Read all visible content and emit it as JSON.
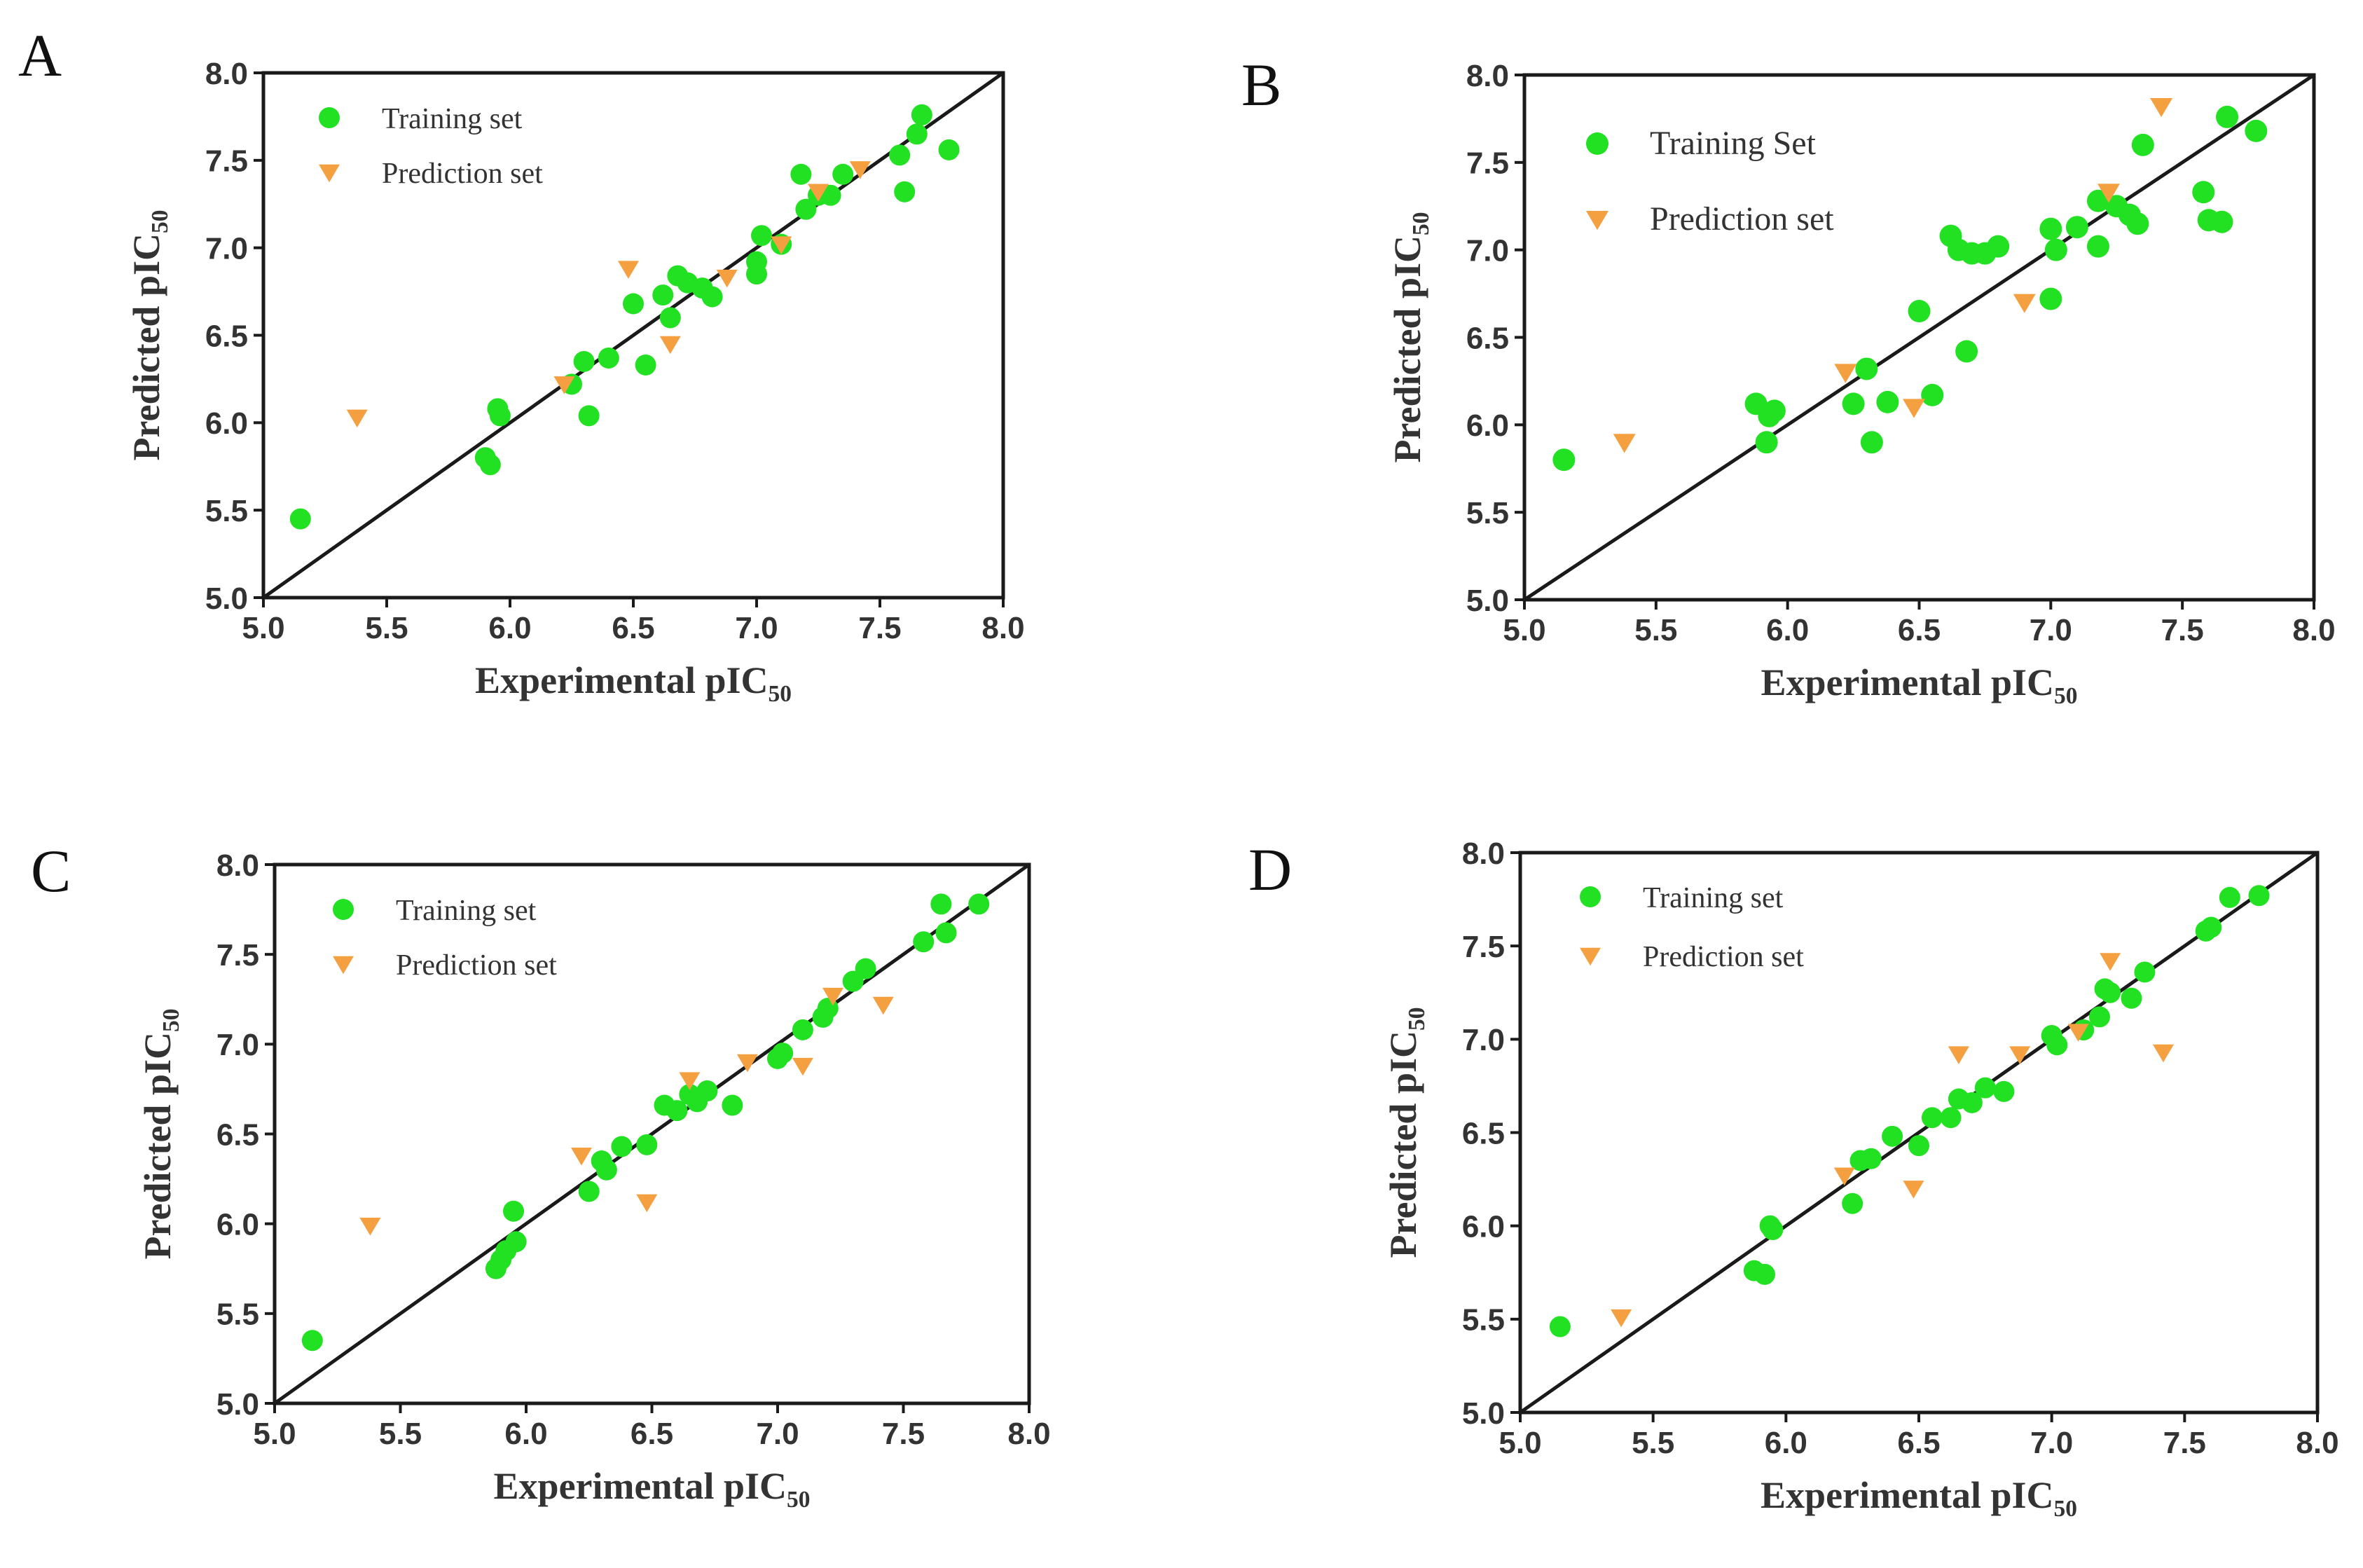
{
  "colors": {
    "training": "#22e022",
    "prediction": "#f5a040",
    "axis": "#1a1a1a",
    "text": "#333333"
  },
  "chart_data": [
    {
      "panel": "A",
      "type": "scatter",
      "xlabel": "Experimental  pIC",
      "xlabel_sub": "50",
      "ylabel": "Predicted pIC",
      "ylabel_sub": "50",
      "xlim": [
        5.0,
        8.0
      ],
      "ylim": [
        5.0,
        8.0
      ],
      "xticks": [
        "5.0",
        "5.5",
        "6.0",
        "6.5",
        "7.0",
        "7.5",
        "8.0"
      ],
      "yticks": [
        "5.0",
        "5.5",
        "6.0",
        "6.5",
        "7.0",
        "7.5",
        "8.0"
      ],
      "legend": [
        "Training set",
        "Prediction set"
      ],
      "legend_position": "top-left",
      "diagonal": true,
      "series": [
        {
          "name": "Training set",
          "marker": "circle",
          "points": [
            [
              5.15,
              5.45
            ],
            [
              5.9,
              5.8
            ],
            [
              5.92,
              5.76
            ],
            [
              5.95,
              6.08
            ],
            [
              5.96,
              6.04
            ],
            [
              6.25,
              6.22
            ],
            [
              6.3,
              6.35
            ],
            [
              6.32,
              6.04
            ],
            [
              6.4,
              6.37
            ],
            [
              6.5,
              6.68
            ],
            [
              6.55,
              6.33
            ],
            [
              6.62,
              6.73
            ],
            [
              6.65,
              6.6
            ],
            [
              6.68,
              6.84
            ],
            [
              6.72,
              6.8
            ],
            [
              6.78,
              6.77
            ],
            [
              6.82,
              6.72
            ],
            [
              7.0,
              6.85
            ],
            [
              7.0,
              6.92
            ],
            [
              7.02,
              7.07
            ],
            [
              7.1,
              7.02
            ],
            [
              7.18,
              7.42
            ],
            [
              7.2,
              7.22
            ],
            [
              7.25,
              7.3
            ],
            [
              7.3,
              7.3
            ],
            [
              7.35,
              7.42
            ],
            [
              7.58,
              7.53
            ],
            [
              7.6,
              7.32
            ],
            [
              7.65,
              7.65
            ],
            [
              7.67,
              7.76
            ],
            [
              7.78,
              7.56
            ]
          ]
        },
        {
          "name": "Prediction set",
          "marker": "triangle-down",
          "points": [
            [
              5.38,
              6.03
            ],
            [
              6.22,
              6.22
            ],
            [
              6.48,
              6.88
            ],
            [
              6.65,
              6.45
            ],
            [
              6.88,
              6.83
            ],
            [
              7.1,
              7.02
            ],
            [
              7.25,
              7.32
            ],
            [
              7.42,
              7.45
            ]
          ]
        }
      ]
    },
    {
      "panel": "B",
      "type": "scatter",
      "xlabel": "Experimental  pIC",
      "xlabel_sub": "50",
      "ylabel": "Predicted pIC",
      "ylabel_sub": "50",
      "xlim": [
        5.0,
        8.0
      ],
      "ylim": [
        5.0,
        8.0
      ],
      "xticks": [
        "5.0",
        "5.5",
        "6.0",
        "6.5",
        "7.0",
        "7.5",
        "8.0"
      ],
      "yticks": [
        "5.0",
        "5.5",
        "6.0",
        "6.5",
        "7.0",
        "7.5",
        "8.0"
      ],
      "legend": [
        "Training Set",
        "Prediction set"
      ],
      "legend_position": "top-left",
      "diagonal": true,
      "series": [
        {
          "name": "Training Set",
          "marker": "circle",
          "points": [
            [
              5.15,
              5.8
            ],
            [
              5.88,
              6.12
            ],
            [
              5.92,
              5.9
            ],
            [
              5.93,
              6.05
            ],
            [
              5.95,
              6.08
            ],
            [
              6.25,
              6.12
            ],
            [
              6.3,
              6.32
            ],
            [
              6.32,
              5.9
            ],
            [
              6.38,
              6.13
            ],
            [
              6.5,
              6.65
            ],
            [
              6.55,
              6.17
            ],
            [
              6.62,
              7.08
            ],
            [
              6.65,
              7.0
            ],
            [
              6.68,
              6.42
            ],
            [
              6.7,
              6.98
            ],
            [
              6.75,
              6.98
            ],
            [
              6.8,
              7.02
            ],
            [
              7.0,
              7.12
            ],
            [
              7.0,
              6.72
            ],
            [
              7.02,
              7.0
            ],
            [
              7.1,
              7.13
            ],
            [
              7.18,
              7.28
            ],
            [
              7.18,
              7.02
            ],
            [
              7.25,
              7.25
            ],
            [
              7.3,
              7.2
            ],
            [
              7.33,
              7.15
            ],
            [
              7.35,
              7.6
            ],
            [
              7.58,
              7.33
            ],
            [
              7.6,
              7.17
            ],
            [
              7.65,
              7.16
            ],
            [
              7.67,
              7.76
            ],
            [
              7.78,
              7.68
            ]
          ]
        },
        {
          "name": "Prediction set",
          "marker": "triangle-down",
          "points": [
            [
              5.38,
              5.9
            ],
            [
              6.22,
              6.3
            ],
            [
              6.48,
              6.1
            ],
            [
              6.9,
              6.7
            ],
            [
              7.22,
              7.33
            ],
            [
              7.42,
              7.82
            ]
          ]
        }
      ]
    },
    {
      "panel": "C",
      "type": "scatter",
      "xlabel": "Experimental  pIC",
      "xlabel_sub": "50",
      "ylabel": "Predicted pIC",
      "ylabel_sub": "50",
      "xlim": [
        5.0,
        8.0
      ],
      "ylim": [
        5.0,
        8.0
      ],
      "xticks": [
        "5.0",
        "5.5",
        "6.0",
        "6.5",
        "7.0",
        "7.5",
        "8.0"
      ],
      "yticks": [
        "5.0",
        "5.5",
        "6.0",
        "6.5",
        "7.0",
        "7.5",
        "8.0"
      ],
      "legend": [
        "Training set",
        "Prediction set"
      ],
      "legend_position": "top-left",
      "diagonal": true,
      "series": [
        {
          "name": "Training set",
          "marker": "circle",
          "points": [
            [
              5.15,
              5.35
            ],
            [
              5.88,
              5.75
            ],
            [
              5.9,
              5.8
            ],
            [
              5.92,
              5.85
            ],
            [
              5.95,
              6.07
            ],
            [
              5.96,
              5.9
            ],
            [
              6.25,
              6.18
            ],
            [
              6.3,
              6.35
            ],
            [
              6.32,
              6.3
            ],
            [
              6.38,
              6.43
            ],
            [
              6.48,
              6.44
            ],
            [
              6.55,
              6.66
            ],
            [
              6.6,
              6.63
            ],
            [
              6.65,
              6.72
            ],
            [
              6.68,
              6.68
            ],
            [
              6.72,
              6.74
            ],
            [
              6.82,
              6.66
            ],
            [
              7.0,
              6.92
            ],
            [
              7.02,
              6.95
            ],
            [
              7.1,
              7.08
            ],
            [
              7.18,
              7.15
            ],
            [
              7.2,
              7.2
            ],
            [
              7.3,
              7.35
            ],
            [
              7.35,
              7.42
            ],
            [
              7.58,
              7.57
            ],
            [
              7.65,
              7.78
            ],
            [
              7.67,
              7.62
            ],
            [
              7.8,
              7.78
            ]
          ]
        },
        {
          "name": "Prediction set",
          "marker": "triangle-down",
          "points": [
            [
              5.38,
              5.99
            ],
            [
              6.22,
              6.38
            ],
            [
              6.48,
              6.12
            ],
            [
              6.65,
              6.8
            ],
            [
              6.88,
              6.9
            ],
            [
              7.1,
              6.88
            ],
            [
              7.22,
              7.27
            ],
            [
              7.42,
              7.22
            ]
          ]
        }
      ]
    },
    {
      "panel": "D",
      "type": "scatter",
      "xlabel": "Experimental  pIC",
      "xlabel_sub": "50",
      "ylabel": "Predicted pIC",
      "ylabel_sub": "50",
      "xlim": [
        5.0,
        8.0
      ],
      "ylim": [
        5.0,
        8.0
      ],
      "xticks": [
        "5.0",
        "5.5",
        "6.0",
        "6.5",
        "7.0",
        "7.5",
        "8.0"
      ],
      "yticks": [
        "5.0",
        "5.5",
        "6.0",
        "6.5",
        "7.0",
        "7.5",
        "8.0"
      ],
      "legend": [
        "Training set",
        "Prediction set"
      ],
      "legend_position": "top-left",
      "diagonal": true,
      "series": [
        {
          "name": "Training set",
          "marker": "circle",
          "points": [
            [
              5.15,
              5.46
            ],
            [
              5.88,
              5.76
            ],
            [
              5.92,
              5.74
            ],
            [
              5.94,
              6.0
            ],
            [
              5.95,
              5.98
            ],
            [
              6.25,
              6.12
            ],
            [
              6.28,
              6.35
            ],
            [
              6.32,
              6.36
            ],
            [
              6.4,
              6.48
            ],
            [
              6.5,
              6.43
            ],
            [
              6.55,
              6.58
            ],
            [
              6.62,
              6.58
            ],
            [
              6.65,
              6.68
            ],
            [
              6.7,
              6.66
            ],
            [
              6.75,
              6.74
            ],
            [
              6.82,
              6.72
            ],
            [
              7.0,
              7.02
            ],
            [
              7.02,
              6.97
            ],
            [
              7.12,
              7.05
            ],
            [
              7.18,
              7.12
            ],
            [
              7.2,
              7.27
            ],
            [
              7.22,
              7.25
            ],
            [
              7.3,
              7.22
            ],
            [
              7.35,
              7.36
            ],
            [
              7.58,
              7.58
            ],
            [
              7.6,
              7.6
            ],
            [
              7.67,
              7.76
            ],
            [
              7.78,
              7.77
            ]
          ]
        },
        {
          "name": "Prediction set",
          "marker": "triangle-down",
          "points": [
            [
              5.38,
              5.51
            ],
            [
              6.22,
              6.27
            ],
            [
              6.48,
              6.2
            ],
            [
              6.65,
              6.92
            ],
            [
              6.88,
              6.92
            ],
            [
              7.1,
              7.04
            ],
            [
              7.22,
              7.42
            ],
            [
              7.42,
              6.93
            ]
          ]
        }
      ]
    }
  ]
}
